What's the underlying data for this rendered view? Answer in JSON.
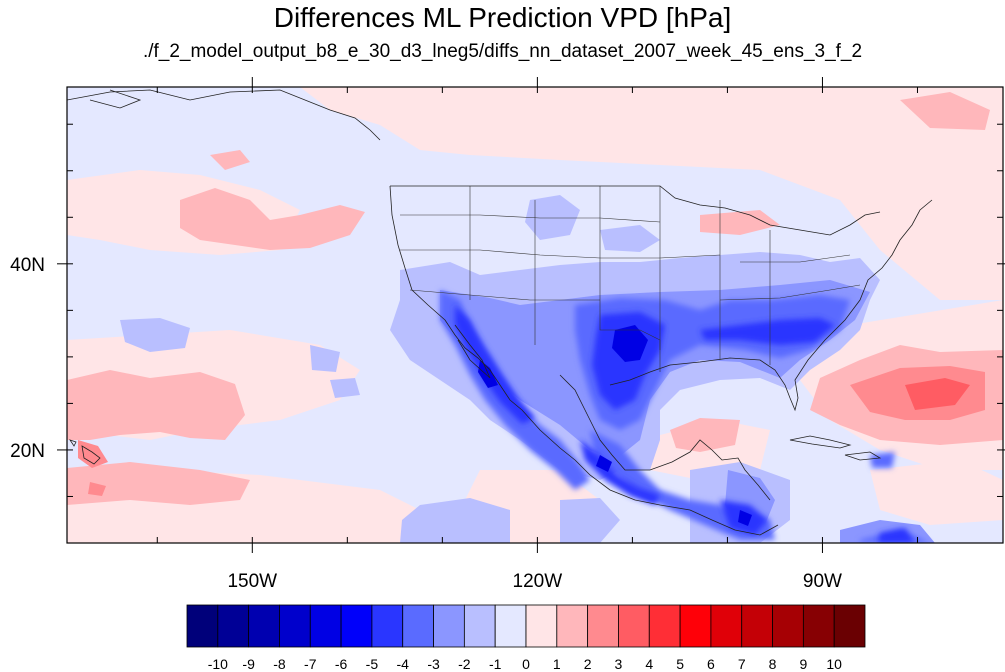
{
  "title": "Differences ML Prediction VPD [hPa]",
  "subtitle": "./f_2_model_output_b8_e_30_d3_lneg5/diffs_nn_dataset_2007_week_45_ens_3_f_2",
  "map": {
    "lon_range": [
      -169.5,
      -71
    ],
    "lat_range": [
      10,
      59
    ],
    "lon_labels": [
      {
        "lon": -150,
        "label": "150W"
      },
      {
        "lon": -120,
        "label": "120W"
      },
      {
        "lon": -90,
        "label": "90W"
      }
    ],
    "lat_labels": [
      {
        "lat": 40,
        "label": "40N"
      },
      {
        "lat": 20,
        "label": "20N"
      }
    ]
  },
  "colorbar": {
    "labels": [
      "-10",
      "-9",
      "-8",
      "-7",
      "-6",
      "-5",
      "-4",
      "-3",
      "-2",
      "-1",
      "0",
      "1",
      "2",
      "3",
      "4",
      "5",
      "6",
      "7",
      "8",
      "9",
      "10"
    ],
    "colors": [
      "#00007a",
      "#000096",
      "#0000b0",
      "#0000cc",
      "#0000e4",
      "#0000fa",
      "#2a36ff",
      "#5a6bff",
      "#8b96ff",
      "#b9bfff",
      "#e4e8ff",
      "#ffe5e7",
      "#ffb7bb",
      "#ff8a8f",
      "#ff5c63",
      "#ff2e36",
      "#ff0008",
      "#e00008",
      "#c40006",
      "#a60004",
      "#870003",
      "#6a0002"
    ]
  }
}
